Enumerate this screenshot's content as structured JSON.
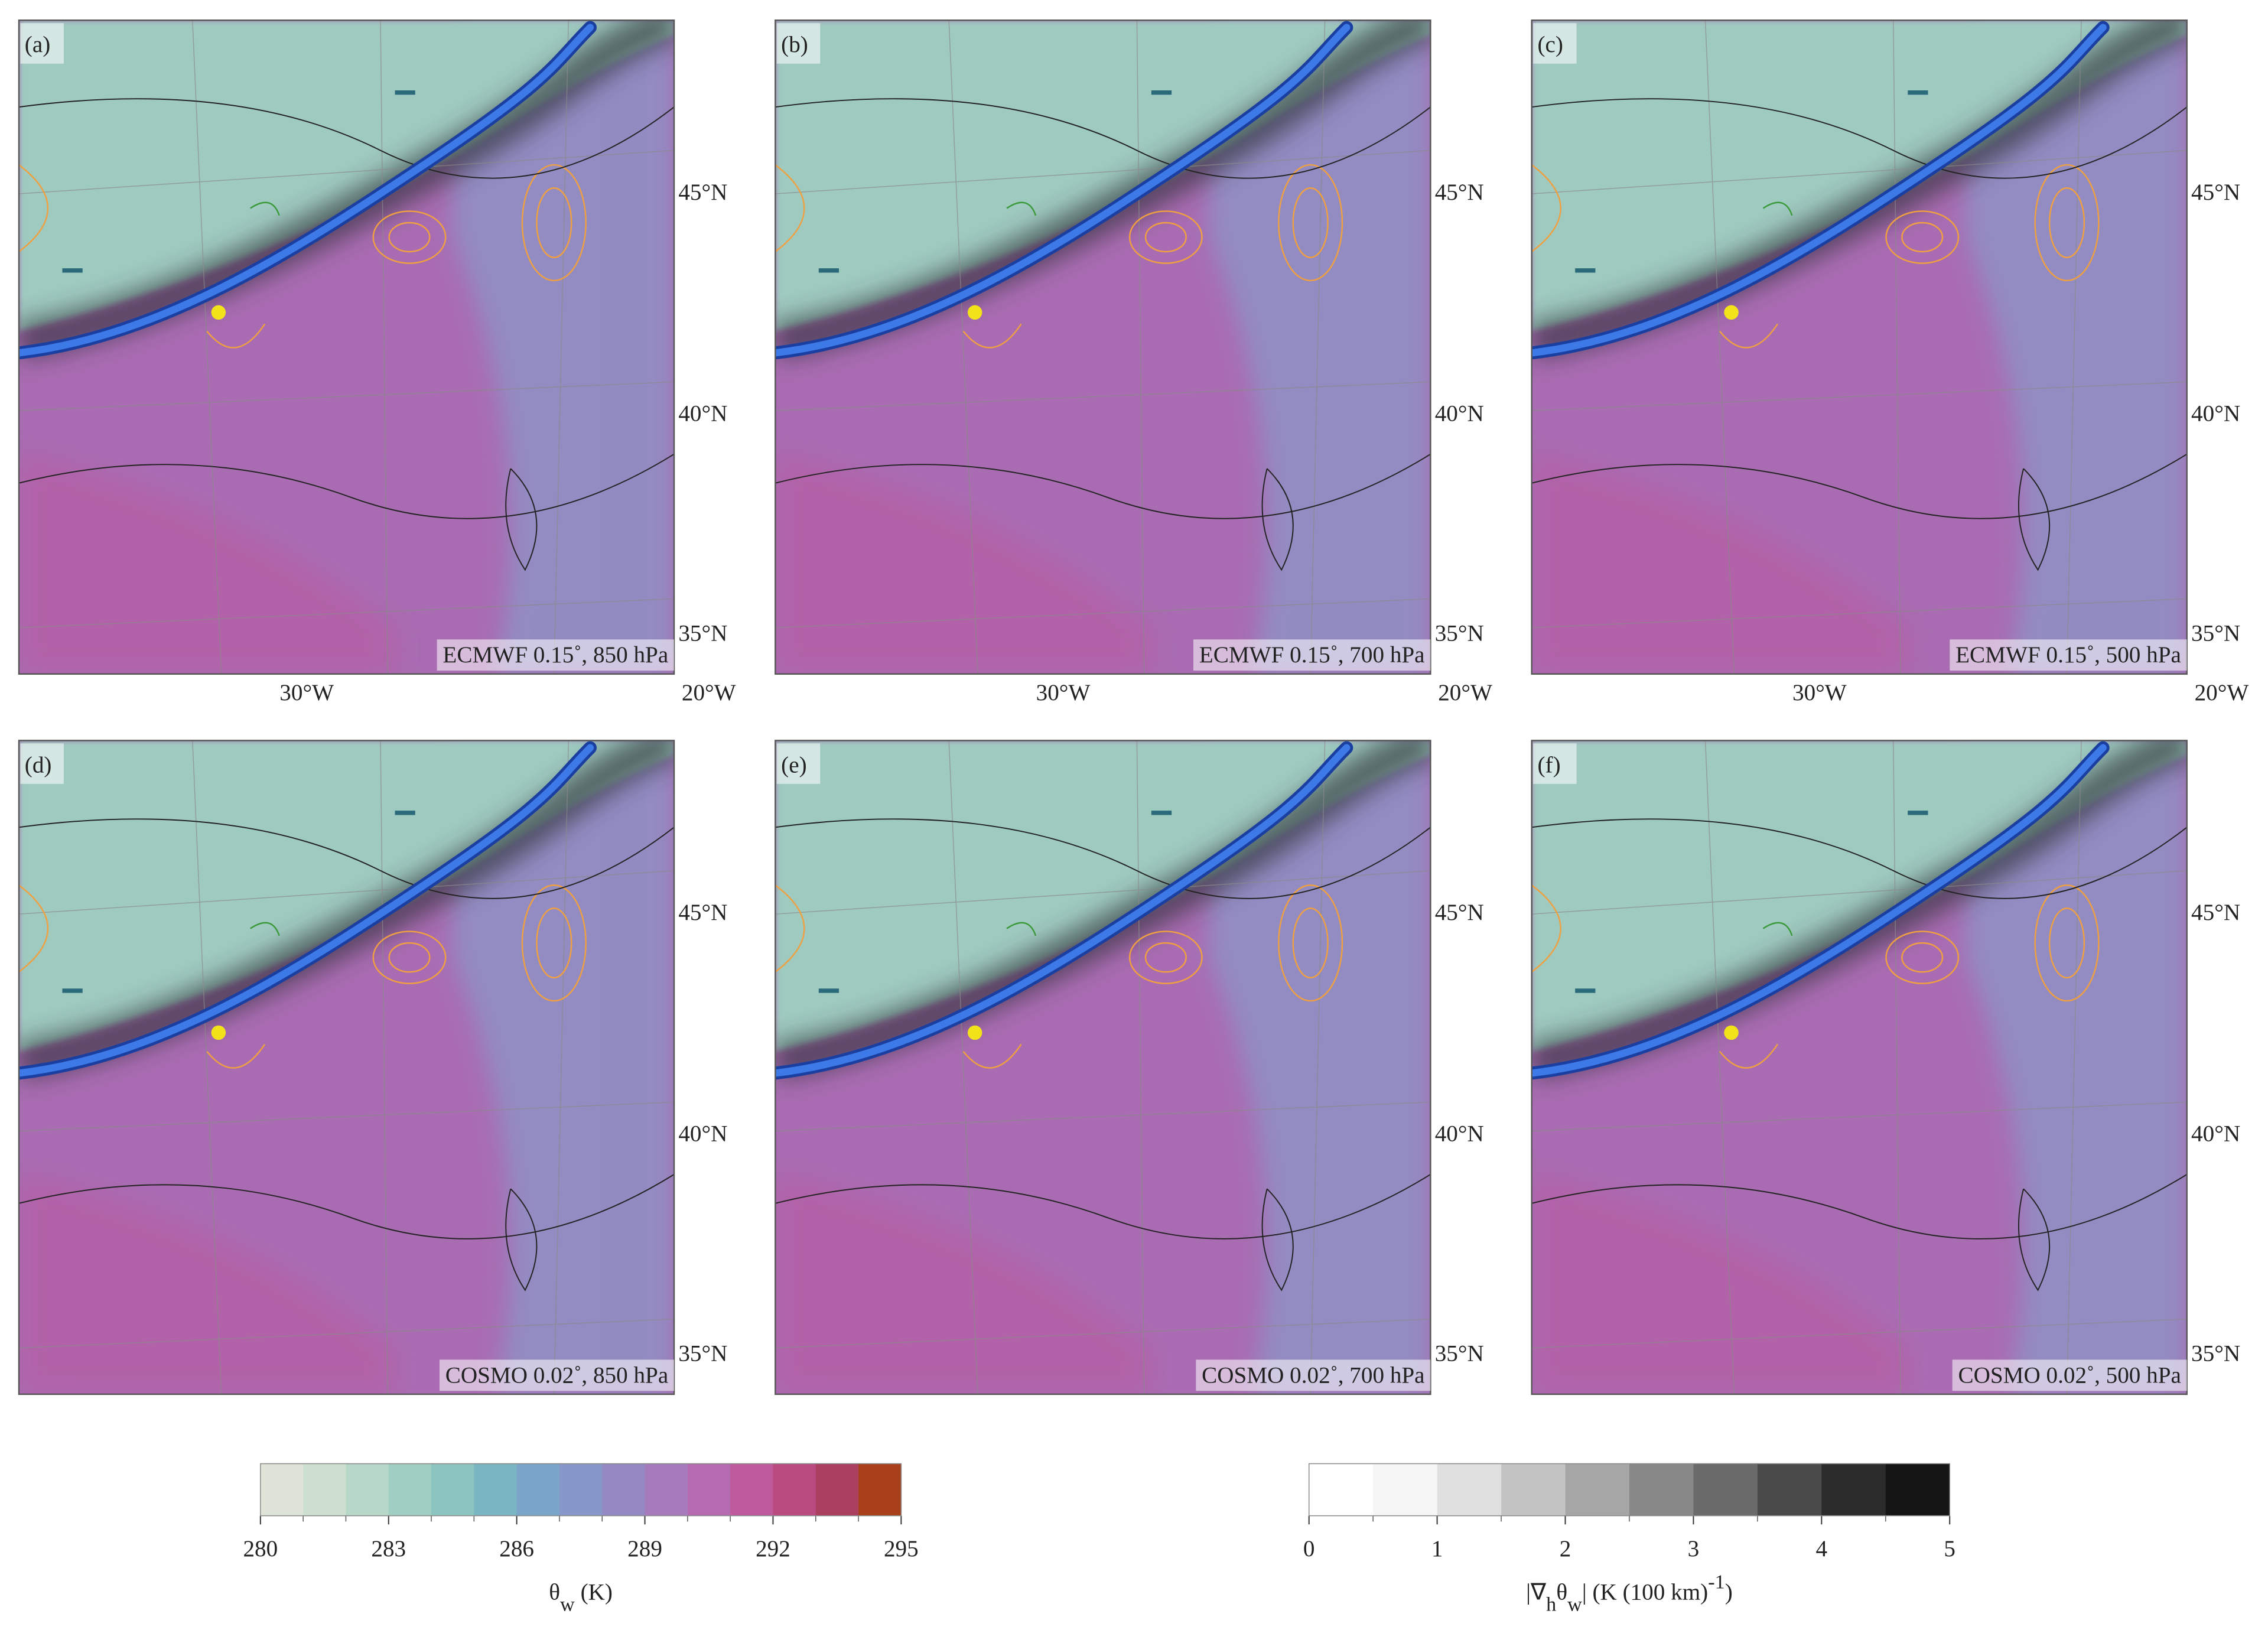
{
  "panels": [
    {
      "label": "(a)",
      "title": "ECMWF 0.15˚, 850 hPa",
      "lat_labels": [
        "45°N",
        "40°N",
        "35°N"
      ],
      "lon_labels": [
        "30°W",
        "20°W"
      ]
    },
    {
      "label": "(b)",
      "title": "ECMWF 0.15˚, 700 hPa",
      "lat_labels": [
        "45°N",
        "40°N",
        "35°N"
      ],
      "lon_labels": [
        "30°W",
        "20°W"
      ]
    },
    {
      "label": "(c)",
      "title": "ECMWF 0.15˚, 500 hPa",
      "lat_labels": [
        "45°N",
        "40°N",
        "35°N"
      ],
      "lon_labels": [
        "30°W",
        "20°W"
      ]
    },
    {
      "label": "(d)",
      "title": "COSMO 0.02˚, 850 hPa",
      "lat_labels": [
        "45°N",
        "40°N",
        "35°N"
      ]
    },
    {
      "label": "(e)",
      "title": "COSMO 0.02˚, 700 hPa",
      "lat_labels": [
        "45°N",
        "40°N",
        "35°N"
      ]
    },
    {
      "label": "(f)",
      "title": "COSMO 0.02˚, 500 hPa",
      "lat_labels": [
        "45°N",
        "40°N",
        "35°N"
      ]
    }
  ],
  "colorbars": [
    {
      "lim": [
        280,
        295
      ],
      "ticks": [
        280,
        283,
        286,
        289,
        292,
        295
      ],
      "colors": [
        "#dfe4d8",
        "#cde0cf",
        "#b7d8c8",
        "#a1cec2",
        "#8cc4c0",
        "#7ab5c2",
        "#7aa5c9",
        "#8797c9",
        "#9589c4",
        "#a67bbc",
        "#b56bb0",
        "#bf5a9c",
        "#b94b80",
        "#aa3f60",
        "#a8401c"
      ],
      "label": [
        {
          "text": "θ"
        },
        {
          "text": "w",
          "sub": true
        },
        {
          "text": " (K)"
        }
      ]
    },
    {
      "lim": [
        0,
        5
      ],
      "ticks": [
        0,
        1,
        2,
        3,
        4,
        5
      ],
      "colors": [
        "#ffffff",
        "#f6f6f6",
        "#e0e0e0",
        "#c4c4c4",
        "#a6a6a6",
        "#888888",
        "#6a6a6a",
        "#4a4a4a",
        "#2c2c2c",
        "#141414"
      ],
      "label": [
        {
          "text": "|∇"
        },
        {
          "text": "h",
          "sub": true
        },
        {
          "text": "θ"
        },
        {
          "text": "w",
          "sub": true
        },
        {
          "text": "|  (K (100 km)"
        },
        {
          "text": "-1",
          "sup": true
        },
        {
          "text": ")"
        }
      ]
    }
  ]
}
